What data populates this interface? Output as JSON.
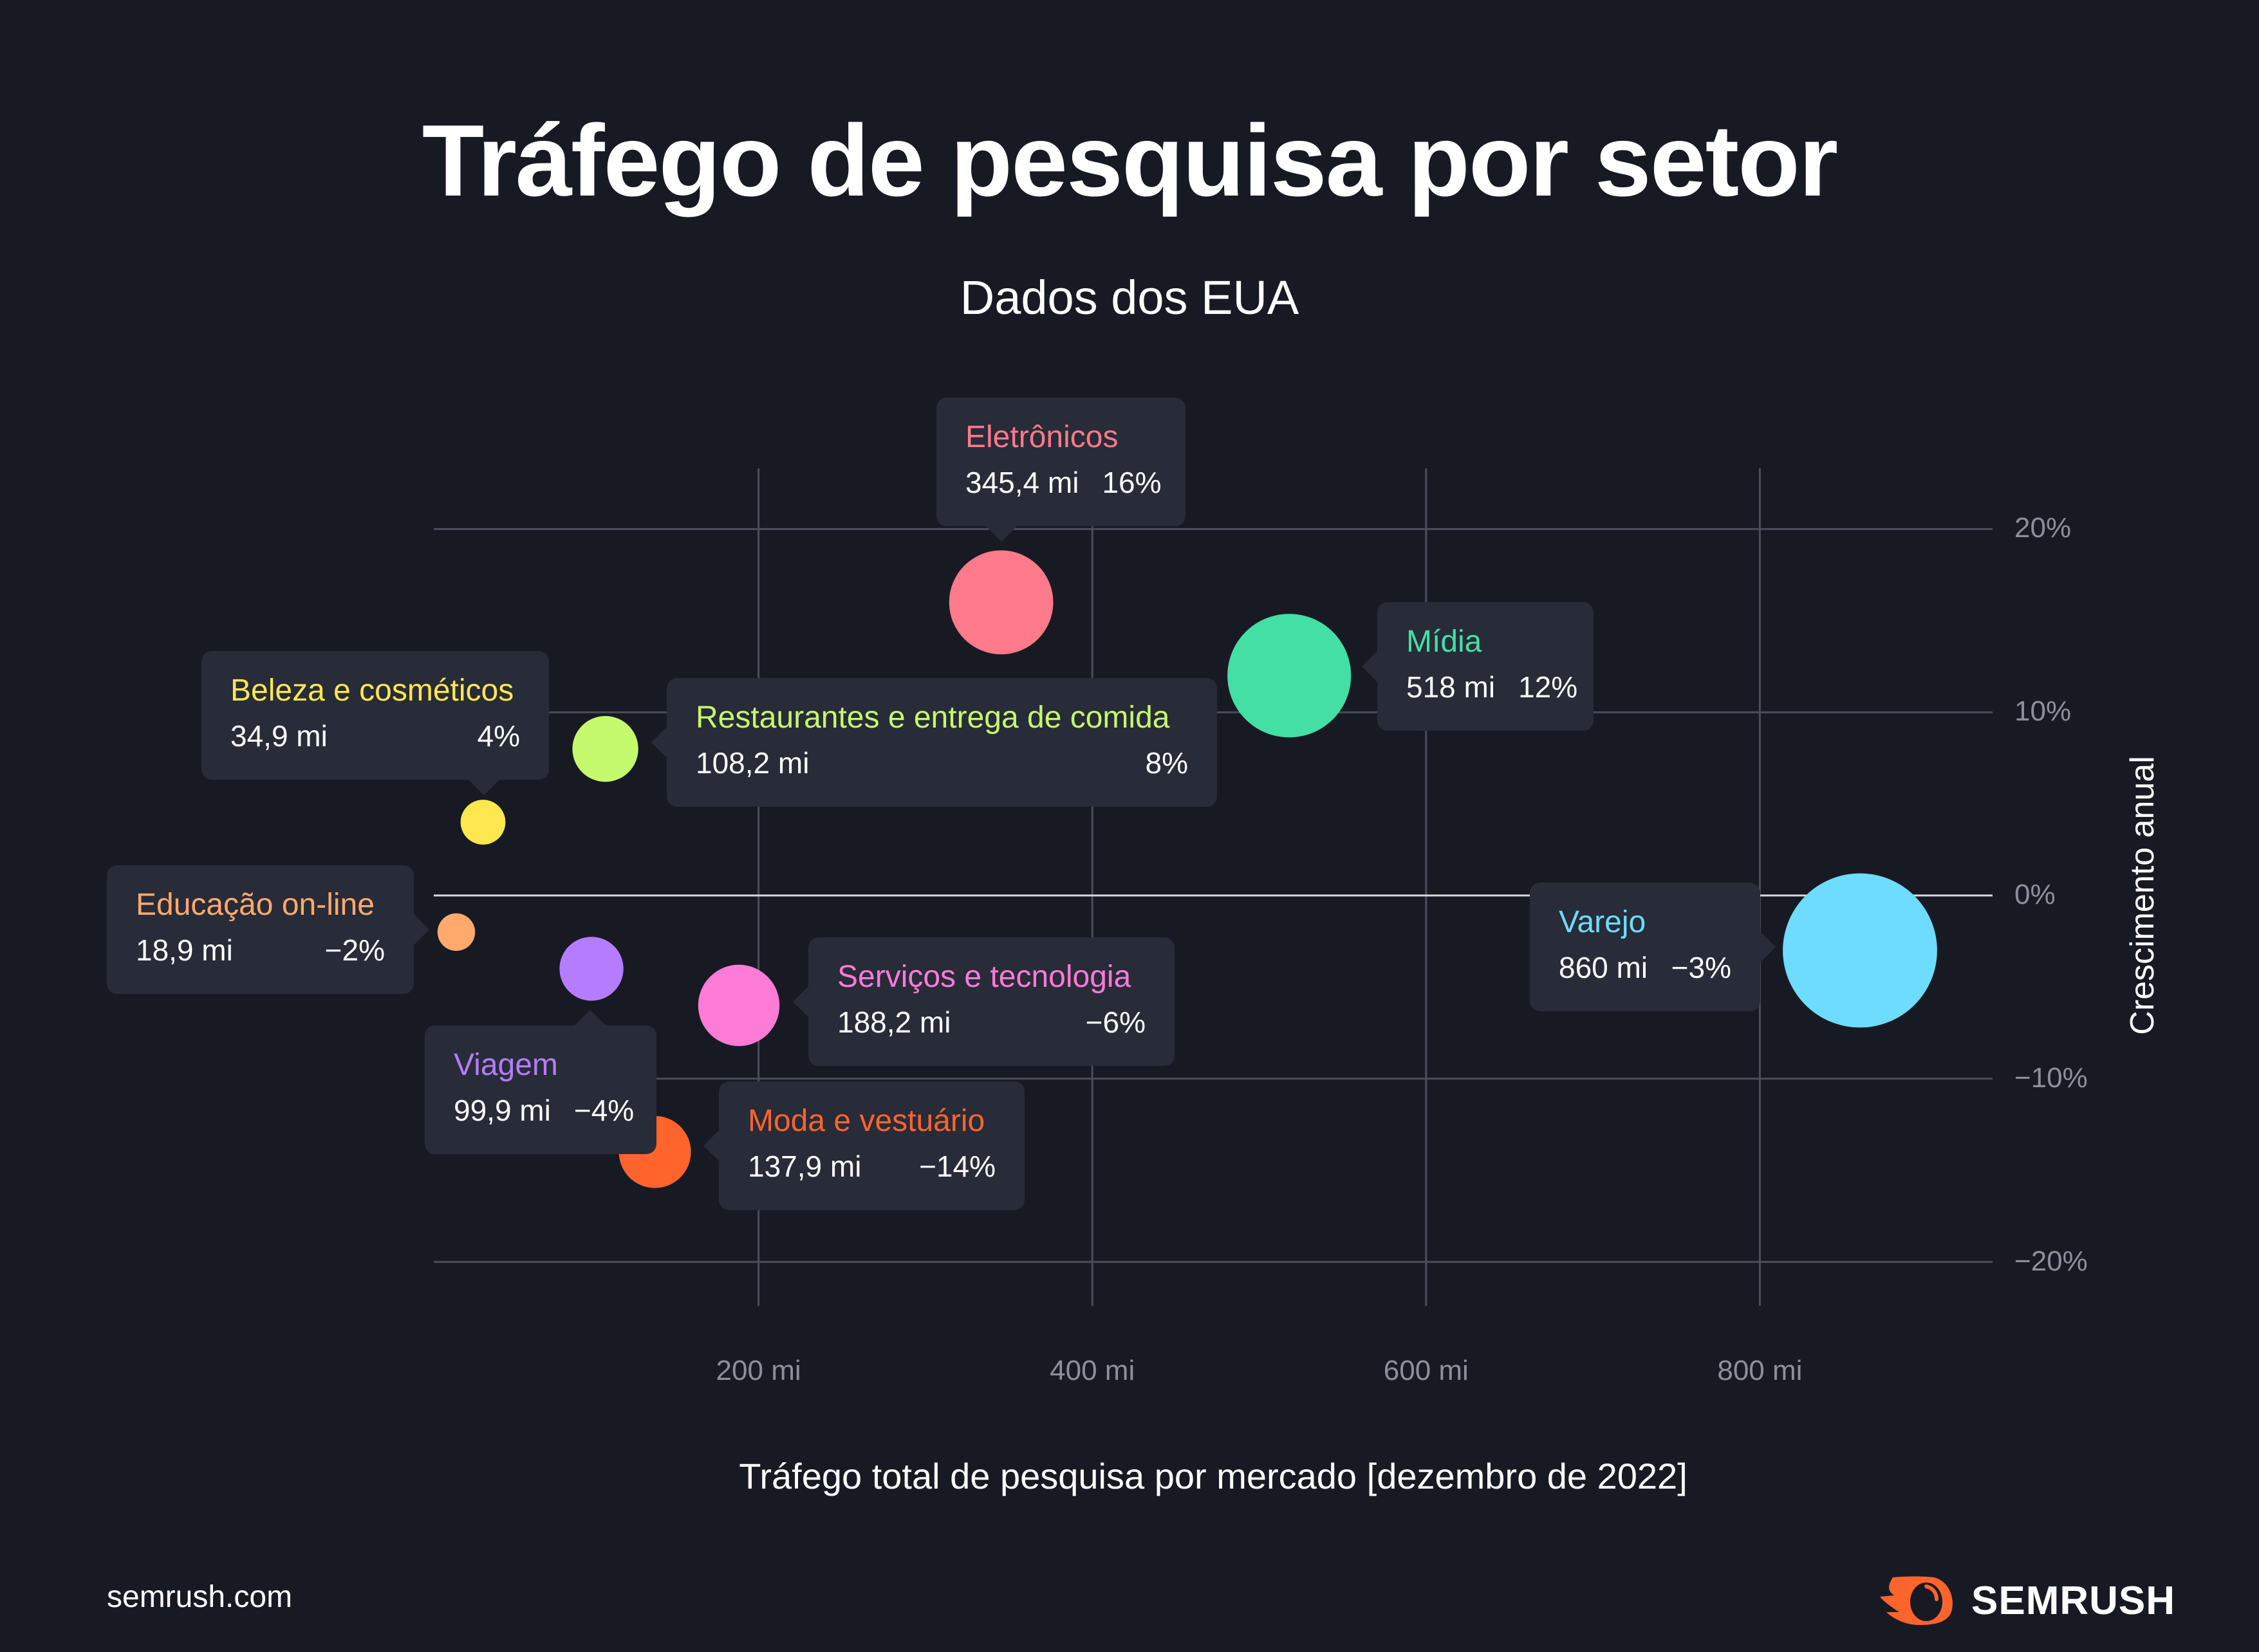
{
  "title": "Tráfego de pesquisa por setor",
  "subtitle": "Dados dos EUA",
  "footer": "semrush.com",
  "logo": "SEMRUSH",
  "logo_icon": "semrush-fire-icon",
  "colors": {
    "background": "#181a23",
    "tooltip": "#282b38",
    "grid": "#4a4d5c",
    "zero_line": "#d9d9de",
    "brand": "#ff642d"
  },
  "chart_data": {
    "type": "scatter",
    "bubble": true,
    "title": "Tráfego de pesquisa por setor",
    "subtitle": "Dados dos EUA",
    "xlabel": "Tráfego total de pesquisa por mercado [dezembro de 2022]",
    "ylabel": "Crescimento anual",
    "xlim": [
      0,
      940
    ],
    "ylim": [
      -20,
      20
    ],
    "x_ticks": [
      200,
      400,
      600,
      800
    ],
    "x_tick_labels": [
      "200 mi",
      "400 mi",
      "600 mi",
      "800 mi"
    ],
    "y_ticks": [
      20,
      10,
      0,
      -10,
      -20
    ],
    "y_tick_labels": [
      "20%",
      "10%",
      "0%",
      "−10%",
      "−20%"
    ],
    "grid": true,
    "points": [
      {
        "name": "Eletrônicos",
        "x": 345.4,
        "y": 16,
        "x_label": "345,4 mi",
        "y_label": "16%",
        "color": "#ff7a8a"
      },
      {
        "name": "Mídia",
        "x": 518,
        "y": 12,
        "x_label": "518 mi",
        "y_label": "12%",
        "color": "#43dfa5"
      },
      {
        "name": "Beleza e cosméticos",
        "x": 34.9,
        "y": 4,
        "x_label": "34,9 mi",
        "y_label": "4%",
        "color": "#ffe84f"
      },
      {
        "name": "Restaurantes e entrega de comida",
        "x": 108.2,
        "y": 8,
        "x_label": "108,2 mi",
        "y_label": "8%",
        "color": "#c6fa6e"
      },
      {
        "name": "Educação on-line",
        "x": 18.9,
        "y": -2,
        "x_label": "18,9 mi",
        "y_label": "−2%",
        "color": "#ffaa6c"
      },
      {
        "name": "Viagem",
        "x": 99.9,
        "y": -4,
        "x_label": "99,9 mi",
        "y_label": "−4%",
        "color": "#b57cff"
      },
      {
        "name": "Serviços e tecnologia",
        "x": 188.2,
        "y": -6,
        "x_label": "188,2 mi",
        "y_label": "−6%",
        "color": "#ff7bd8"
      },
      {
        "name": "Moda e vestuário",
        "x": 137.9,
        "y": -14,
        "x_label": "137,9 mi",
        "y_label": "−14%",
        "color": "#ff642d"
      },
      {
        "name": "Varejo",
        "x": 860,
        "y": -3,
        "x_label": "860 mi",
        "y_label": "−3%",
        "color": "#6ddcff"
      }
    ]
  }
}
